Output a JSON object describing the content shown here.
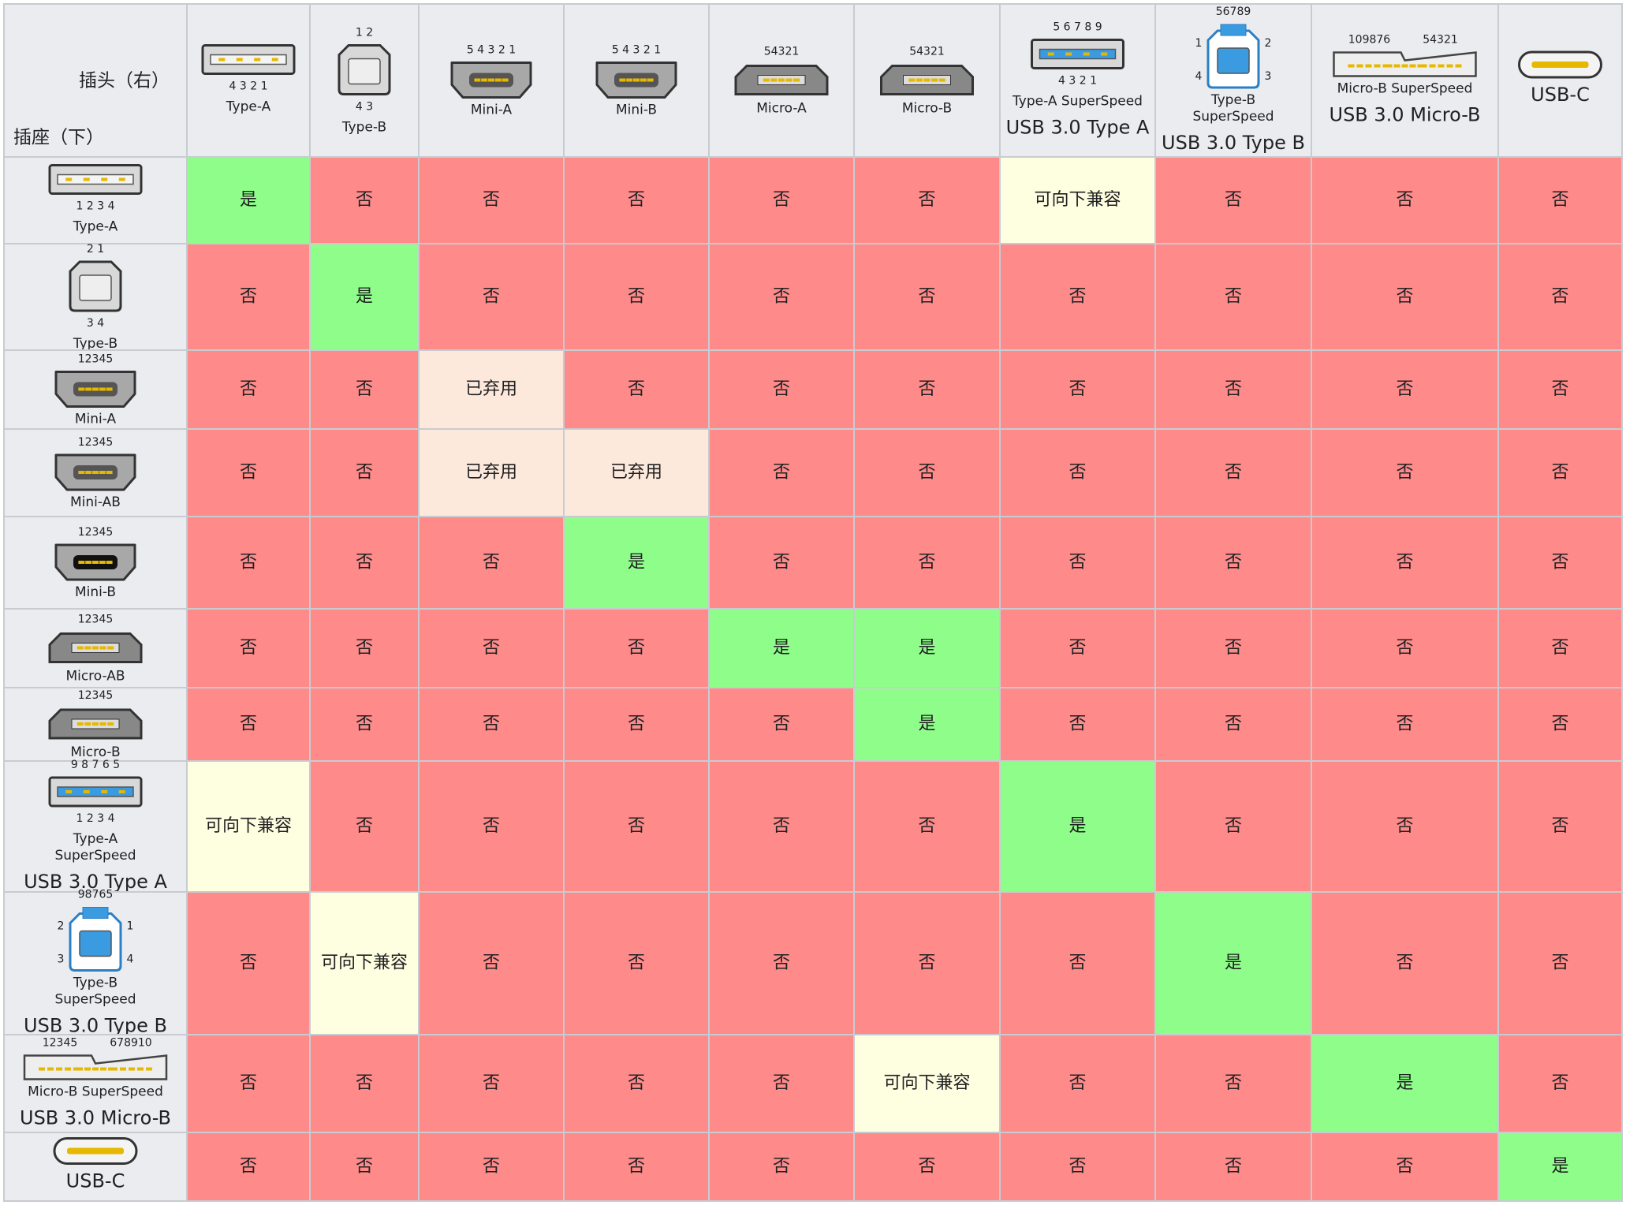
{
  "header": {
    "plug_label": "插头（右）",
    "socket_label": "插座（下）"
  },
  "columns": [
    {
      "bottom": [
        "4 3 2 1"
      ],
      "caption": [
        "Type-A"
      ]
    },
    {
      "top": [
        "1 2"
      ],
      "bottom": [
        "4 3"
      ],
      "caption": [
        "Type-B"
      ]
    },
    {
      "top": [
        "5 4 3 2 1"
      ],
      "caption": [
        "Mini-A"
      ]
    },
    {
      "top": [
        "5 4 3 2 1"
      ],
      "caption": [
        "Mini-B"
      ]
    },
    {
      "top": [
        "54321"
      ],
      "caption": [
        "Micro-A"
      ]
    },
    {
      "top": [
        "54321"
      ],
      "caption": [
        "Micro-B"
      ]
    },
    {
      "top": [
        "5 6 7 8 9"
      ],
      "bottom": [
        "4 3 2 1"
      ],
      "caption": [
        "Type-A SuperSpeed"
      ],
      "title": "USB 3.0 Type A"
    },
    {
      "top": [
        "56789"
      ],
      "left": [
        "1",
        "4"
      ],
      "right": [
        "2",
        "3"
      ],
      "caption": [
        "Type-B",
        "SuperSpeed"
      ],
      "title": "USB 3.0 Type B"
    },
    {
      "top": [
        "109876",
        "54321"
      ],
      "caption": [
        "Micro-B SuperSpeed"
      ],
      "title": "USB 3.0 Micro-B"
    },
    {
      "title": "USB-C"
    }
  ],
  "rows": [
    {
      "bottom": [
        "1 2 3 4"
      ],
      "caption": [
        "Type-A"
      ]
    },
    {
      "top": [
        "2 1"
      ],
      "bottom": [
        "3 4"
      ],
      "caption": [
        "Type-B"
      ]
    },
    {
      "top": [
        "12345"
      ],
      "caption": [
        "Mini-A"
      ]
    },
    {
      "top": [
        "12345"
      ],
      "caption": [
        "Mini-AB"
      ]
    },
    {
      "top": [
        "12345"
      ],
      "caption": [
        "Mini-B"
      ]
    },
    {
      "top": [
        "12345"
      ],
      "caption": [
        "Micro-AB"
      ]
    },
    {
      "top": [
        "12345"
      ],
      "caption": [
        "Micro-B"
      ]
    },
    {
      "top": [
        "9 8 7 6 5"
      ],
      "bottom": [
        "1 2 3 4"
      ],
      "caption": [
        "Type-A",
        "SuperSpeed"
      ],
      "title": "USB 3.0 Type A"
    },
    {
      "top": [
        "98765"
      ],
      "left": [
        "2",
        "3"
      ],
      "right": [
        "1",
        "4"
      ],
      "caption": [
        "Type-B",
        "SuperSpeed"
      ],
      "title": "USB 3.0 Type B"
    },
    {
      "top": [
        "12345",
        "678910"
      ],
      "caption": [
        "Micro-B SuperSpeed"
      ],
      "title": "USB 3.0 Micro-B"
    },
    {
      "title": "USB-C"
    }
  ],
  "cells": [
    [
      "是",
      "否",
      "否",
      "否",
      "否",
      "否",
      "可向下兼容",
      "否",
      "否",
      "否"
    ],
    [
      "否",
      "是",
      "否",
      "否",
      "否",
      "否",
      "否",
      "否",
      "否",
      "否"
    ],
    [
      "否",
      "否",
      "已弃用",
      "否",
      "否",
      "否",
      "否",
      "否",
      "否",
      "否"
    ],
    [
      "否",
      "否",
      "已弃用",
      "已弃用",
      "否",
      "否",
      "否",
      "否",
      "否",
      "否"
    ],
    [
      "否",
      "否",
      "否",
      "是",
      "否",
      "否",
      "否",
      "否",
      "否",
      "否"
    ],
    [
      "否",
      "否",
      "否",
      "否",
      "是",
      "是",
      "否",
      "否",
      "否",
      "否"
    ],
    [
      "否",
      "否",
      "否",
      "否",
      "否",
      "是",
      "否",
      "否",
      "否",
      "否"
    ],
    [
      "可向下兼容",
      "否",
      "否",
      "否",
      "否",
      "否",
      "是",
      "否",
      "否",
      "否"
    ],
    [
      "否",
      "可向下兼容",
      "否",
      "否",
      "否",
      "否",
      "否",
      "是",
      "否",
      "否"
    ],
    [
      "否",
      "否",
      "否",
      "否",
      "否",
      "可向下兼容",
      "否",
      "否",
      "是",
      "否"
    ],
    [
      "否",
      "否",
      "否",
      "否",
      "否",
      "否",
      "否",
      "否",
      "否",
      "是"
    ]
  ],
  "status_colors": {
    "是": "#8ffd8a",
    "否": "#fe8a8a",
    "已弃用": "#fde9dc",
    "可向下兼容": "#fefee0"
  }
}
